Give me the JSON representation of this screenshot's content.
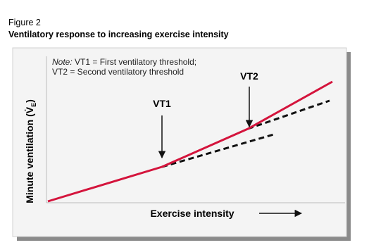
{
  "figure_label": "Figure 2",
  "title": "Ventilatory response to increasing exercise intensity",
  "note": {
    "label": "Note:",
    "lines": [
      " VT1 = First ventilatory threshold;",
      "VT2 = Second ventilatory threshold"
    ]
  },
  "annotations": [
    "VT1",
    "VT2"
  ],
  "x_label": "Exercise intensity",
  "y_label": [
    "Minute ventilation (",
    "V̇",
    "E",
    ")"
  ]
}
